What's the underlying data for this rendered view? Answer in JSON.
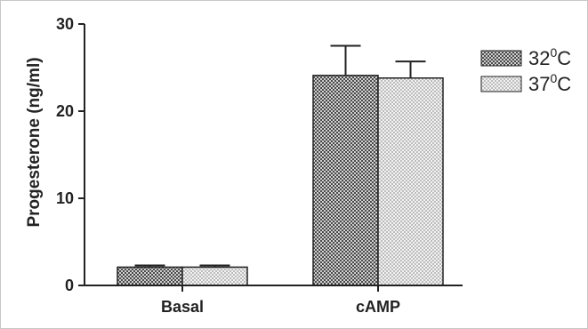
{
  "chart_data": {
    "type": "bar",
    "title": "",
    "xlabel": "",
    "ylabel": "Progesterone (ng/ml)",
    "ylim": [
      0,
      30
    ],
    "yticks": [
      0,
      10,
      20,
      30
    ],
    "categories": [
      "Basal",
      "cAMP"
    ],
    "series": [
      {
        "name_base": "32",
        "name_sup": "0",
        "name_unit": "C",
        "values": [
          2.1,
          24.1
        ],
        "errors": [
          0.2,
          3.4
        ],
        "pattern": "dark-checker"
      },
      {
        "name_base": "37",
        "name_sup": "0",
        "name_unit": "C",
        "values": [
          2.1,
          23.8
        ],
        "errors": [
          0.2,
          1.9
        ],
        "pattern": "light-checker"
      }
    ],
    "legend_position": "top-right",
    "grid": false
  }
}
